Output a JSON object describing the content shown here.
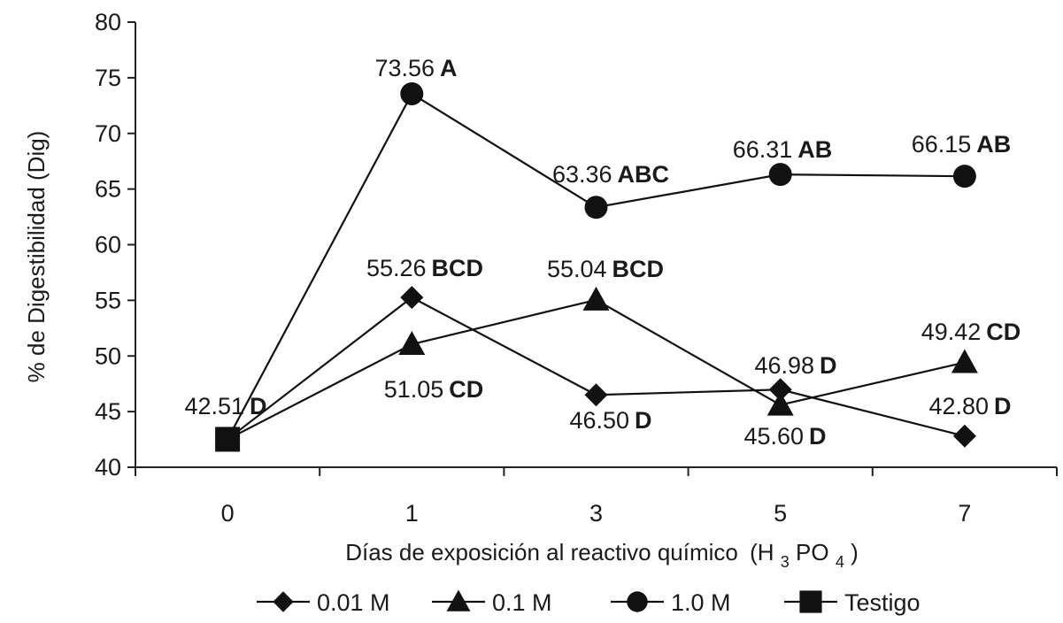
{
  "chart_data": {
    "type": "line",
    "title": "",
    "xlabel": {
      "text": "Días de exposición al reactivo químico",
      "formula": [
        "(H",
        "3",
        "PO",
        "4",
        ")"
      ]
    },
    "ylabel": "% de Digestibilidad  (Dig)",
    "categories": [
      "0",
      "1",
      "3",
      "5",
      "7"
    ],
    "ylim": [
      40,
      80
    ],
    "yticks": [
      "40",
      "45",
      "50",
      "55",
      "60",
      "65",
      "70",
      "75",
      "80"
    ],
    "grid": false,
    "legend_position": "bottom",
    "series": [
      {
        "name": "0.01 M",
        "marker": "diamond",
        "values": [
          42.51,
          55.26,
          46.5,
          46.98,
          42.8
        ],
        "labels": [
          null,
          [
            "55.26",
            "BCD"
          ],
          [
            "46.50",
            "D"
          ],
          [
            "46.98",
            "D"
          ],
          [
            "42.80",
            "D"
          ]
        ]
      },
      {
        "name": "0.1 M",
        "marker": "triangle",
        "values": [
          42.51,
          51.05,
          55.04,
          45.6,
          49.42
        ],
        "labels": [
          null,
          [
            "51.05",
            "CD"
          ],
          [
            "55.04",
            "BCD"
          ],
          [
            "45.60",
            "D"
          ],
          [
            "49.42",
            "CD"
          ]
        ]
      },
      {
        "name": "1.0 M",
        "marker": "circle",
        "values": [
          42.51,
          73.56,
          63.36,
          66.31,
          66.15
        ],
        "labels": [
          null,
          [
            "73.56",
            "A"
          ],
          [
            "63.36",
            "ABC"
          ],
          [
            "66.31",
            "AB"
          ],
          [
            "66.15",
            "AB"
          ]
        ]
      },
      {
        "name": "Testigo",
        "marker": "square",
        "values": [
          42.51,
          null,
          null,
          null,
          null
        ],
        "labels": [
          [
            "42.51",
            "D"
          ],
          null,
          null,
          null,
          null
        ]
      }
    ]
  }
}
